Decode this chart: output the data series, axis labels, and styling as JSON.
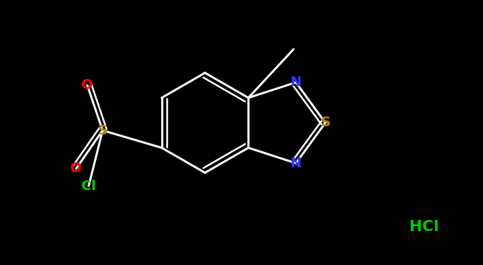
{
  "bg_color": "#000000",
  "bond_color": "#ffffff",
  "atom_colors": {
    "O": "#ff0000",
    "S_sulfonyl": "#b8860b",
    "S_thiadiazole": "#b8860b",
    "Cl_sulfonyl": "#00cc00",
    "N": "#3333ff",
    "HCl": "#00cc00",
    "C": "#ffffff"
  },
  "bond_width": 2.2,
  "font_size_atoms": 14,
  "font_size_HCl": 16
}
